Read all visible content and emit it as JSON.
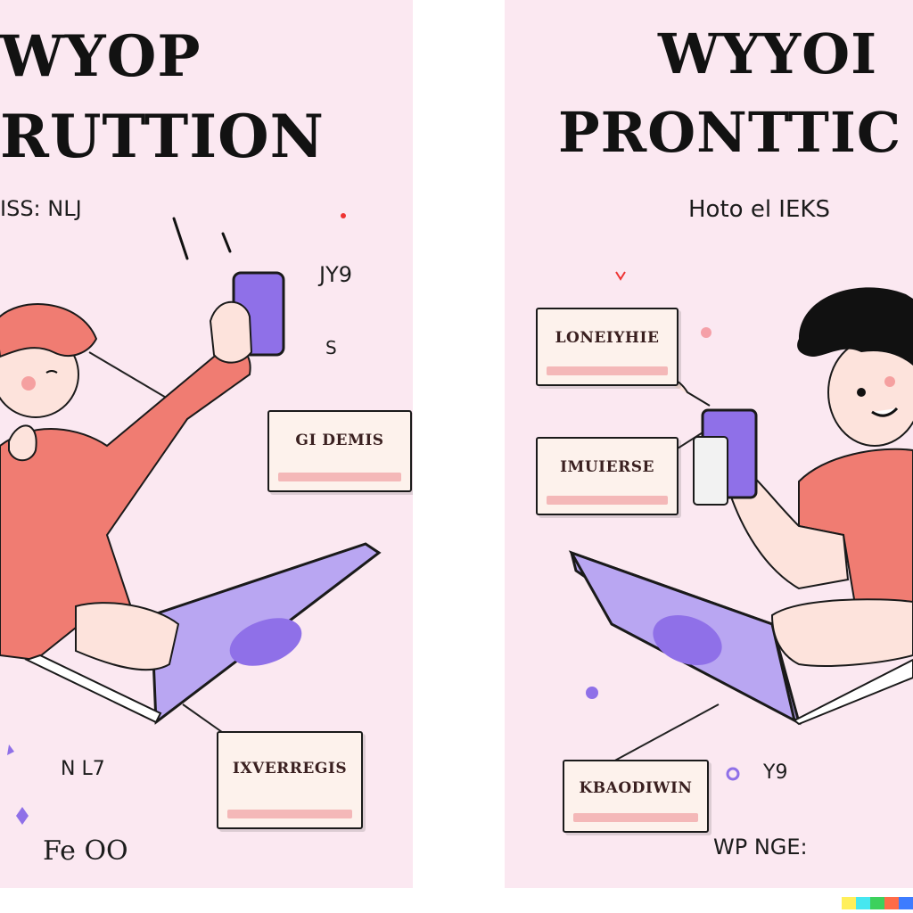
{
  "left_panel": {
    "headline_line1": "WYOP",
    "headline_line2": "RUTTION",
    "scribble_top": "ISS: NLJ",
    "scribble_phone": "JY9",
    "scribble_side": "S",
    "scribble_bottom": "Fe OO",
    "scribble_bottom2": "N L7",
    "notes": [
      "GI DEMIS",
      "IXVERREGIS"
    ]
  },
  "right_panel": {
    "headline_line1": "WYYOI",
    "headline_line2": "PRONTTIC",
    "scribble_top": "Hoto el IEKS",
    "scribble_side": "Y9",
    "scribble_bottom": "WP NGE:",
    "notes": [
      "LONEIYHIE",
      "IMUIERSE",
      "KBAODIWIN"
    ]
  },
  "colors": {
    "panel_bg": "#fbe8f1",
    "shirt": "#f07c72",
    "laptop": "#b9a6f2",
    "phone": "#8f70e8",
    "ink": "#121212",
    "note_bar": "#f4b8b8"
  },
  "color_strip": [
    "#ffef5a",
    "#46e7f0",
    "#3cd15c",
    "#ff6b47",
    "#3d7cff"
  ]
}
